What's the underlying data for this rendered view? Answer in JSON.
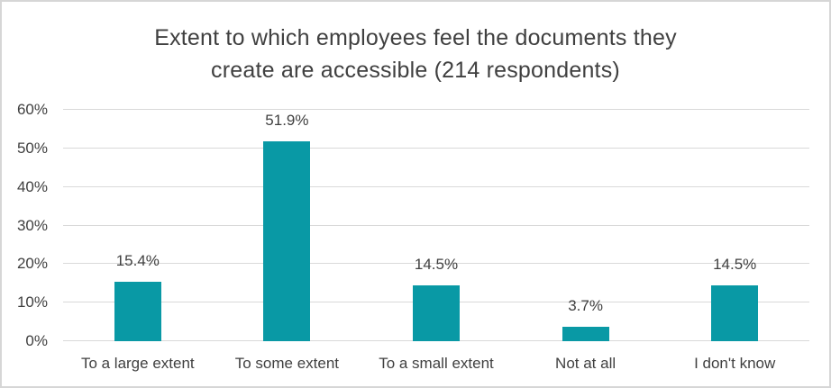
{
  "chart_data": {
    "type": "bar",
    "title": "Extent to which employees feel the documents they create are accessible (214 respondents)",
    "title_lines": [
      "Extent to which employees feel the documents they",
      "create are accessible (214 respondents)"
    ],
    "categories": [
      "To a large extent",
      "To some extent",
      "To a small extent",
      "Not at all",
      "I don't know"
    ],
    "values": [
      15.4,
      51.9,
      14.5,
      3.7,
      14.5
    ],
    "data_labels": [
      "15.4%",
      "51.9%",
      "14.5%",
      "3.7%",
      "14.5%"
    ],
    "y_ticks": [
      "0%",
      "10%",
      "20%",
      "30%",
      "40%",
      "50%",
      "60%"
    ],
    "ylim": [
      0,
      60
    ],
    "grid": true,
    "legend": "none",
    "colors": {
      "bar": "#0999a5",
      "gridline": "#d9d9d9",
      "text": "#404040",
      "frame_border": "#d6d6d6",
      "background": "#ffffff"
    }
  }
}
